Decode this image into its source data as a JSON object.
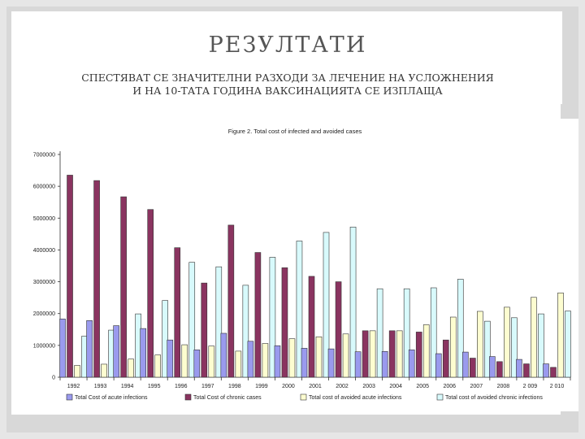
{
  "slide": {
    "title": "РЕЗУЛТАТИ",
    "subtitle_line1": "СПЕСТЯВАТ СЕ ЗНАЧИТЕЛНИ РАЗХОДИ ЗА ЛЕЧЕНИЕ НА УСЛОЖНЕНИЯ",
    "subtitle_line2": "И НА 10-ТАТА ГОДИНА ВАКСИНАЦИЯТА СЕ ИЗПЛАЩА"
  },
  "chart_data": {
    "type": "bar",
    "title": "Figure 2. Total cost of infected and avoided cases",
    "xlabel": "",
    "ylabel": "",
    "ylim": [
      0,
      7000000
    ],
    "yticks": [
      "0",
      "1000000",
      "2000000",
      "3000000",
      "4000000",
      "5000000",
      "6000000",
      "7000000"
    ],
    "grid": false,
    "legend_position": "bottom",
    "categories": [
      "1992",
      "1993",
      "1994",
      "1995",
      "1996",
      "1997",
      "1998",
      "1999",
      "2000",
      "2001",
      "2002",
      "2003",
      "2004",
      "2005",
      "2006",
      "2007",
      "2008",
      "2 009",
      "2 010"
    ],
    "series": [
      {
        "name": "Total Cost of acute infections",
        "color": "#9a9aee",
        "values": [
          1830000,
          1780000,
          1620000,
          1530000,
          1170000,
          860000,
          1380000,
          1130000,
          990000,
          910000,
          890000,
          800000,
          810000,
          860000,
          740000,
          790000,
          650000,
          560000,
          420000
        ]
      },
      {
        "name": "Total Cost of chronic cases",
        "color": "#8a3460",
        "values": [
          6350000,
          6180000,
          5670000,
          5270000,
          4070000,
          2960000,
          4780000,
          3920000,
          3440000,
          3170000,
          3000000,
          1460000,
          1460000,
          1420000,
          1170000,
          600000,
          490000,
          420000,
          310000
        ]
      },
      {
        "name": "Total cost of avoided acute infections",
        "color": "#fdfdd0",
        "values": [
          370000,
          410000,
          570000,
          700000,
          1020000,
          980000,
          820000,
          1060000,
          1210000,
          1270000,
          1360000,
          1460000,
          1460000,
          1650000,
          1890000,
          2070000,
          2200000,
          2510000,
          2650000
        ]
      },
      {
        "name": "Total cost of avoided chronic infections",
        "color": "#d8fafc",
        "values": [
          1290000,
          1480000,
          1990000,
          2410000,
          3610000,
          3470000,
          2890000,
          3770000,
          4280000,
          4550000,
          4720000,
          2780000,
          2780000,
          2810000,
          3080000,
          1760000,
          1870000,
          1990000,
          2080000
        ]
      }
    ]
  }
}
